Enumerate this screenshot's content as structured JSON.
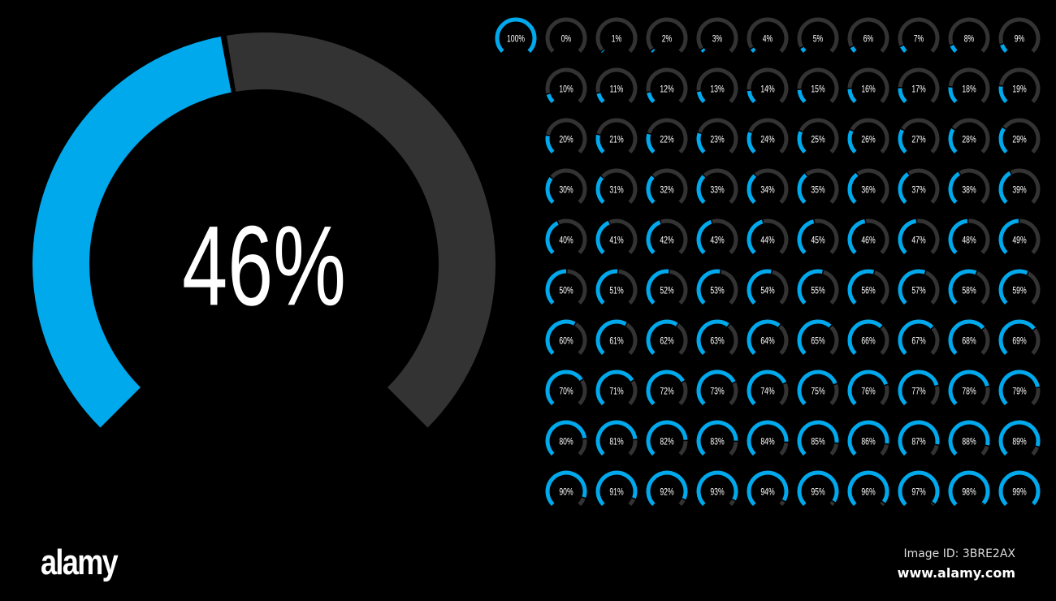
{
  "colors": {
    "filled": "#00a8ec",
    "track": "#333333",
    "background": "#000000",
    "text": "#ffffff"
  },
  "main_gauge": {
    "value": 46,
    "label": "46%"
  },
  "gauge_grid": {
    "first": {
      "value": 100,
      "label": "100%"
    },
    "values": [
      0,
      1,
      2,
      3,
      4,
      5,
      6,
      7,
      8,
      9,
      10,
      11,
      12,
      13,
      14,
      15,
      16,
      17,
      18,
      19,
      20,
      21,
      22,
      23,
      24,
      25,
      26,
      27,
      28,
      29,
      30,
      31,
      32,
      33,
      34,
      35,
      36,
      37,
      38,
      39,
      40,
      41,
      42,
      43,
      44,
      45,
      46,
      47,
      48,
      49,
      50,
      51,
      52,
      53,
      54,
      55,
      56,
      57,
      58,
      59,
      60,
      61,
      62,
      63,
      64,
      65,
      66,
      67,
      68,
      69,
      70,
      71,
      72,
      73,
      74,
      75,
      76,
      77,
      78,
      79,
      80,
      81,
      82,
      83,
      84,
      85,
      86,
      87,
      88,
      89,
      90,
      91,
      92,
      93,
      94,
      95,
      96,
      97,
      98,
      99
    ]
  },
  "watermark": {
    "logo": "alamy",
    "image_id": "Image ID: 3BRE2AX",
    "site": "www.alamy.com"
  }
}
